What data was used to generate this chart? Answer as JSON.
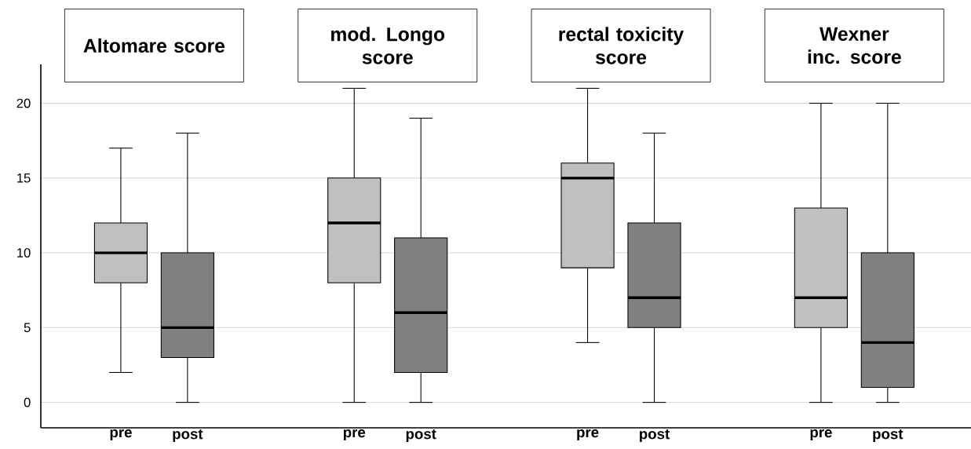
{
  "chart_data": {
    "type": "box",
    "annotations": [
      "Altomare score",
      "mod. Longo score",
      "rectal toxicity score",
      "Wexner inc. score"
    ],
    "categories": [
      "pre",
      "post",
      "pre",
      "post",
      "pre",
      "post",
      "pre",
      "post"
    ],
    "colors": [
      "#c0c0c0",
      "#808080",
      "#c0c0c0",
      "#808080",
      "#c0c0c0",
      "#808080",
      "#c0c0c0",
      "#808080"
    ],
    "boxes": [
      {
        "low": 2,
        "q1": 8,
        "median": 10,
        "q3": 12,
        "high": 17
      },
      {
        "low": 0,
        "q1": 3,
        "median": 5,
        "q3": 10,
        "high": 18
      },
      {
        "low": 0,
        "q1": 8,
        "median": 12,
        "q3": 15,
        "high": 21
      },
      {
        "low": 0,
        "q1": 2,
        "median": 6,
        "q3": 11,
        "high": 19
      },
      {
        "low": 4,
        "q1": 9,
        "median": 15,
        "q3": 16,
        "high": 21
      },
      {
        "low": 0,
        "q1": 5,
        "median": 7,
        "q3": 12,
        "high": 18
      },
      {
        "low": 0,
        "q1": 5,
        "median": 7,
        "q3": 13,
        "high": 20
      },
      {
        "low": 0,
        "q1": 1,
        "median": 4,
        "q3": 10,
        "high": 20
      }
    ],
    "ylim": [
      -1.7,
      22.6
    ],
    "yticks": [
      0,
      5,
      10,
      15,
      20
    ],
    "grid": "y"
  }
}
